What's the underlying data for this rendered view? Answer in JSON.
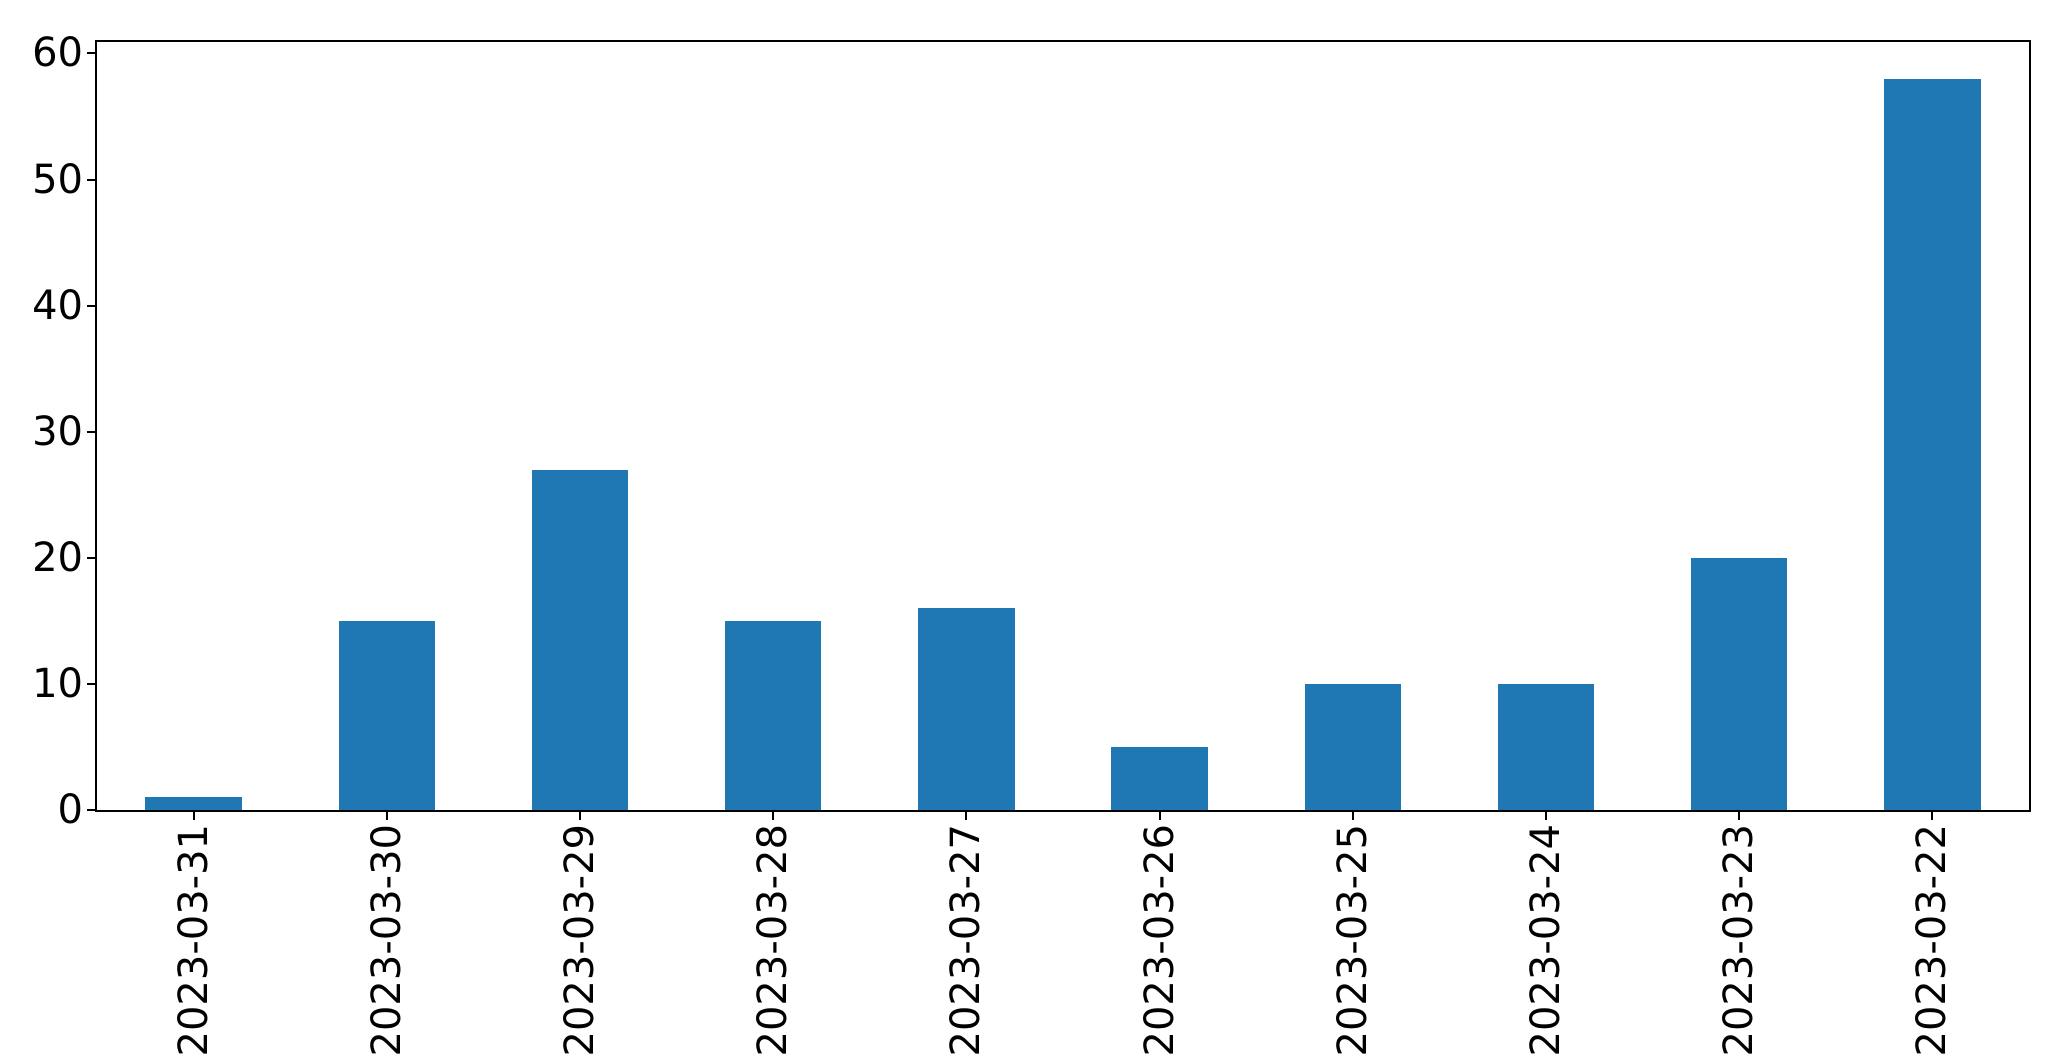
{
  "chart_data": {
    "type": "bar",
    "title": "",
    "xlabel": "",
    "ylabel": "",
    "categories": [
      "2023-03-31",
      "2023-03-30",
      "2023-03-29",
      "2023-03-28",
      "2023-03-27",
      "2023-03-26",
      "2023-03-25",
      "2023-03-24",
      "2023-03-23",
      "2023-03-22"
    ],
    "values": [
      1,
      15,
      27,
      15,
      16,
      5,
      10,
      10,
      20,
      58
    ],
    "yticks": [
      0,
      10,
      20,
      30,
      40,
      50,
      60
    ],
    "ylim": [
      0,
      60.9
    ],
    "bar_color": "#1f77b4",
    "axis_color": "#000000",
    "background_color": "#ffffff",
    "grid": false,
    "legend_position": "none",
    "x_tick_rotation_deg": 90
  }
}
